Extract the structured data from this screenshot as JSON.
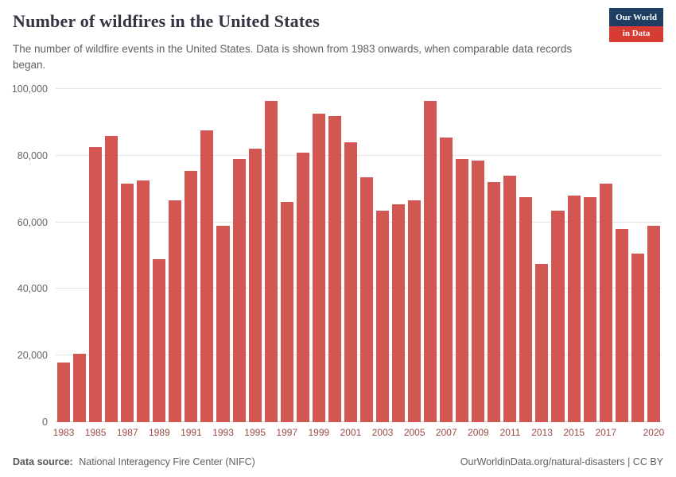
{
  "header": {
    "title": "Number of wildfires in the United States",
    "subtitle": "The number of wildfire events in the United States. Data is shown from 1983 onwards, when comparable data records began.",
    "logo": {
      "line1": "Our World",
      "line2": "in Data"
    }
  },
  "footer": {
    "source_label": "Data source:",
    "source_text": "National Interagency Fire Center (NIFC)",
    "right_text": "OurWorldinData.org/natural-disasters | CC BY"
  },
  "colors": {
    "bar": "#d25652",
    "navy": "#1d3d63",
    "logo_red": "#d73c34"
  },
  "chart_data": {
    "type": "bar",
    "title": "Number of wildfires in the United States",
    "xlabel": "",
    "ylabel": "",
    "grid": true,
    "ylim": [
      0,
      100000
    ],
    "y_ticks": [
      0,
      20000,
      40000,
      60000,
      80000,
      100000
    ],
    "y_tick_labels": [
      "0",
      "20,000",
      "40,000",
      "60,000",
      "80,000",
      "100,000"
    ],
    "x": [
      1983,
      1984,
      1985,
      1986,
      1987,
      1988,
      1989,
      1990,
      1991,
      1992,
      1993,
      1994,
      1995,
      1996,
      1997,
      1998,
      1999,
      2000,
      2001,
      2002,
      2003,
      2004,
      2005,
      2006,
      2007,
      2008,
      2009,
      2010,
      2011,
      2012,
      2013,
      2014,
      2015,
      2016,
      2017,
      2018,
      2019,
      2020
    ],
    "values": [
      18000,
      20500,
      82500,
      86000,
      71500,
      72500,
      49000,
      66500,
      75500,
      87500,
      59000,
      79000,
      82000,
      96500,
      66000,
      81000,
      92500,
      92000,
      84000,
      73500,
      63500,
      65500,
      66500,
      96500,
      85500,
      79000,
      78500,
      72000,
      74000,
      67500,
      47500,
      63500,
      68000,
      67500,
      71500,
      58000,
      50500,
      59000
    ],
    "x_tick_labels": [
      "1983",
      "1985",
      "1987",
      "1989",
      "1991",
      "1993",
      "1995",
      "1997",
      "1999",
      "2001",
      "2003",
      "2005",
      "2007",
      "2009",
      "2011",
      "2013",
      "2015",
      "2017",
      "2020"
    ],
    "bar_color": "#d25652"
  }
}
